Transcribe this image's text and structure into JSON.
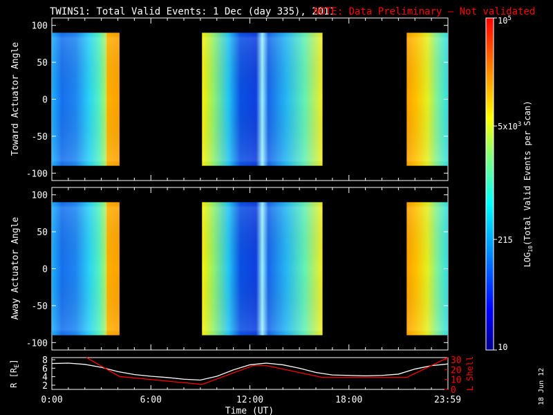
{
  "title": "TWINS1: Total Valid Events:  1 Dec (day 335), 2011",
  "note": "NOTE: Data Preliminary – Not validated",
  "side_date": "18 Jun 12",
  "colors": {
    "background": "#000000",
    "axes": "#ffffff",
    "note": "#ff0000",
    "r_line": "#ffffff",
    "lshell_line": "#ff0000"
  },
  "chart_data": [
    {
      "type": "heatmap",
      "ylabel": "Toward Actuator Angle",
      "ylim": [
        -110,
        110
      ],
      "yticks": [
        "100",
        "50",
        "0",
        "-50",
        "-100"
      ],
      "ytick_values": [
        100,
        50,
        0,
        -50,
        -100
      ],
      "x_hours": [
        0,
        24
      ],
      "angle_range": [
        -90,
        90
      ],
      "data_intervals_h": [
        [
          0,
          4.1
        ],
        [
          9.1,
          16.4
        ],
        [
          21.5,
          24
        ]
      ]
    },
    {
      "type": "heatmap",
      "ylabel": "Away Actuator Angle",
      "ylim": [
        -110,
        110
      ],
      "yticks": [
        "100",
        "50",
        "0",
        "-50",
        "-100"
      ],
      "ytick_values": [
        100,
        50,
        0,
        -50,
        -100
      ],
      "x_hours": [
        0,
        24
      ],
      "angle_range": [
        -90,
        90
      ],
      "data_intervals_h": [
        [
          0,
          4.1
        ],
        [
          9.1,
          16.4
        ],
        [
          21.5,
          24
        ]
      ]
    },
    {
      "type": "line",
      "ylabel_left": "R [R",
      "ylabel_left_sub": "E",
      "ylabel_left_close": "]",
      "ylabel_right": "L Shell",
      "xlabel": "Time (UT)",
      "xticks": [
        "0:00",
        "6:00",
        "12:00",
        "18:00",
        "23:59"
      ],
      "xtick_values": [
        0,
        6,
        12,
        18,
        23.98
      ],
      "yticks_left": [
        "8",
        "6",
        "4",
        "2"
      ],
      "ytick_left_values": [
        8,
        6,
        4,
        2
      ],
      "yticks_right": [
        "30",
        "20",
        "10",
        "0"
      ],
      "ytick_right_values": [
        30,
        20,
        10,
        0
      ],
      "ylim_left": [
        1,
        8.5
      ],
      "ylim_right": [
        0,
        32
      ],
      "series": [
        {
          "name": "R",
          "color": "#ffffff",
          "x": [
            0,
            1,
            2,
            3,
            4,
            5,
            6,
            7,
            8,
            9,
            10,
            11,
            12,
            13,
            14,
            15,
            16,
            17,
            18,
            19,
            20,
            21,
            22,
            23,
            24
          ],
          "y": [
            7.1,
            7.2,
            6.9,
            6.2,
            5.2,
            4.5,
            4.1,
            3.8,
            3.4,
            3.2,
            4.1,
            5.6,
            6.8,
            7.2,
            6.8,
            6.0,
            5.0,
            4.4,
            4.3,
            4.2,
            4.3,
            4.6,
            5.8,
            6.6,
            7.0
          ]
        },
        {
          "name": "L Shell",
          "color": "#ff0000",
          "x": [
            2.1,
            4.1,
            9.1,
            12.2,
            13.0,
            16.4,
            21.5,
            24
          ],
          "y": [
            32,
            13,
            5,
            24,
            24,
            12,
            12,
            32
          ]
        }
      ]
    }
  ],
  "colorbar": {
    "title_pre": "LOG",
    "title_sub": "10",
    "title_post": "(Total Valid Events per Scan)",
    "ticks": [
      {
        "base": "10",
        "sup": "5",
        "mult": "",
        "value": 100000
      },
      {
        "base": "10",
        "sup": "3",
        "mult": "5x",
        "value": 5000
      },
      {
        "base": "215",
        "sup": "",
        "mult": "",
        "value": 215
      },
      {
        "base": "10",
        "sup": "",
        "mult": "",
        "value": 10
      }
    ],
    "range": [
      10,
      100000
    ]
  }
}
